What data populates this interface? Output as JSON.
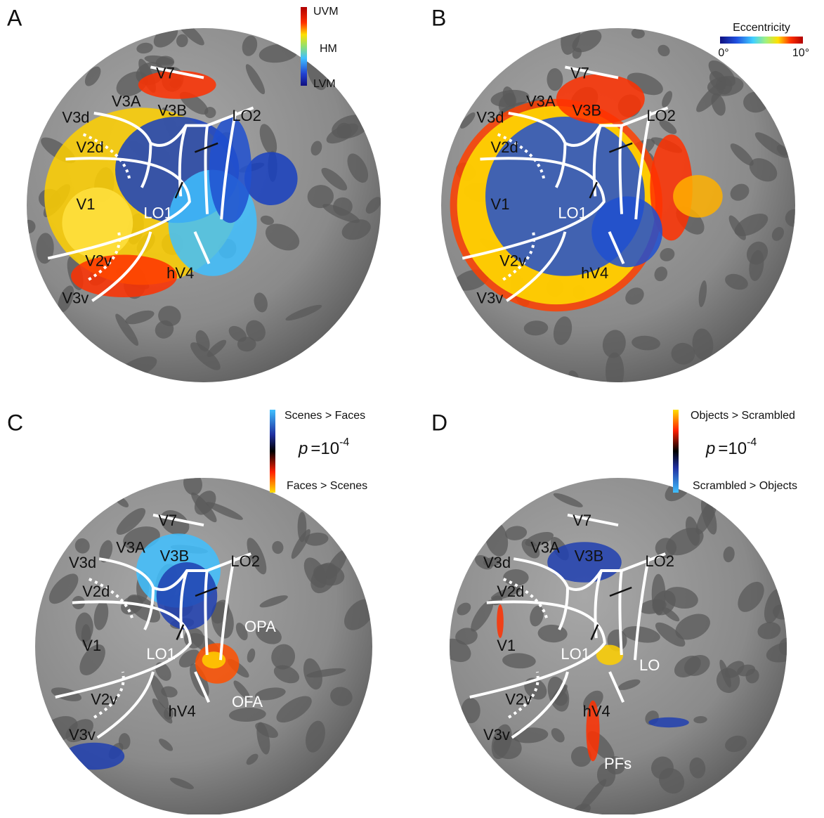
{
  "panels": [
    {
      "letter": "A",
      "legend": {
        "top": "UVM",
        "middle": "HM",
        "bottom": "LVM"
      },
      "areas": [
        "V7",
        "V3A",
        "V3B",
        "LO2",
        "V3d",
        "V2d",
        "V1",
        "LO1",
        "V2v",
        "hV4",
        "V3v"
      ],
      "extra_labels": []
    },
    {
      "letter": "B",
      "legend": {
        "title": "Eccentricity",
        "min": "0°",
        "max": "10°"
      },
      "areas": [
        "V7",
        "V3A",
        "V3B",
        "LO2",
        "V3d",
        "V2d",
        "V1",
        "LO1",
        "V2v",
        "hV4",
        "V3v"
      ],
      "extra_labels": []
    },
    {
      "letter": "C",
      "legend": {
        "top": "Scenes > Faces",
        "p_symbol": "p",
        "p_value": "=10",
        "p_exponent": "-4",
        "bottom": "Faces > Scenes"
      },
      "areas": [
        "V7",
        "V3A",
        "V3B",
        "LO2",
        "V3d",
        "V2d",
        "V1",
        "LO1",
        "V2v",
        "hV4",
        "V3v"
      ],
      "extra_labels": [
        "OPA",
        "OFA"
      ]
    },
    {
      "letter": "D",
      "legend": {
        "top": "Objects > Scrambled",
        "p_symbol": "p",
        "p_value": "=10",
        "p_exponent": "-4",
        "bottom": "Scrambled > Objects"
      },
      "areas": [
        "V7",
        "V3A",
        "V3B",
        "LO2",
        "V3d",
        "V2d",
        "V1",
        "LO1",
        "V2v",
        "hV4",
        "V3v"
      ],
      "extra_labels": [
        "LO",
        "PFs"
      ]
    }
  ]
}
